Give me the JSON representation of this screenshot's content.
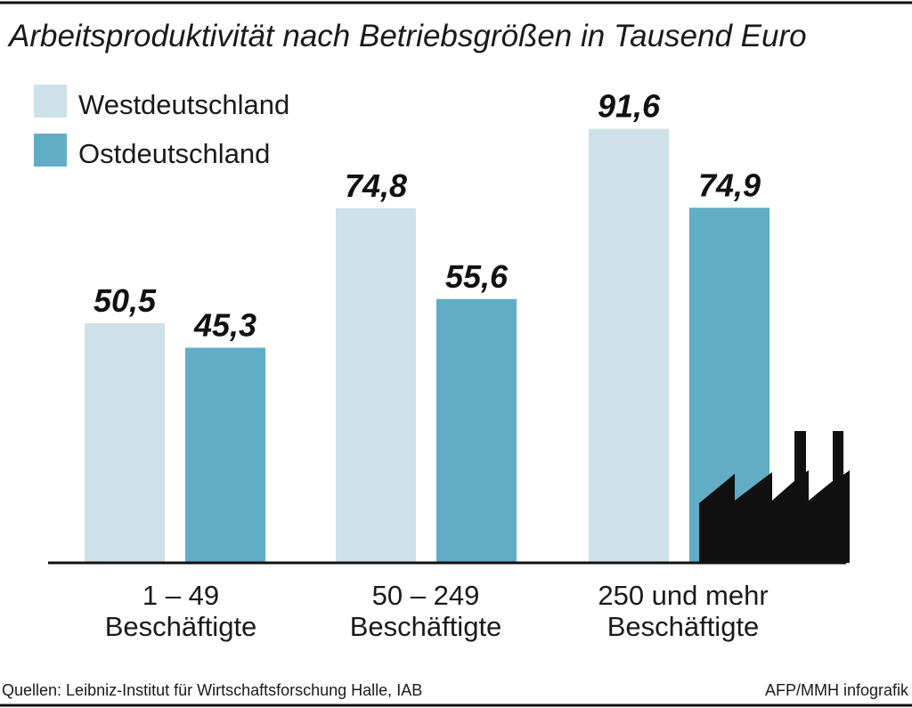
{
  "chart_data": {
    "type": "bar",
    "title": "Arbeitsproduktivität nach Betriebsgrößen in Tausend Euro",
    "categories": [
      [
        "1 – 49",
        "Beschäftigte"
      ],
      [
        "50 – 249",
        "Beschäftigte"
      ],
      [
        "250 und mehr",
        "Beschäftigte"
      ]
    ],
    "series": [
      {
        "name": "Westdeutschland",
        "color": "#cfe1e8",
        "values": [
          50.5,
          74.8,
          91.6
        ],
        "labels": [
          "50,5",
          "74,8",
          "91,6"
        ]
      },
      {
        "name": "Ostdeutschland",
        "color": "#62adc6",
        "values": [
          45.3,
          55.6,
          74.9
        ],
        "labels": [
          "45,3",
          "55,6",
          "74,9"
        ]
      }
    ],
    "ylim": [
      0,
      100
    ],
    "grid": false,
    "legend": "top-left",
    "decoration_icon": "factory-icon"
  },
  "footer": {
    "source": "Quellen: Leibniz-Institut für Wirtschaftsforschung Halle, IAB",
    "credit": "AFP/MMH infografik"
  }
}
